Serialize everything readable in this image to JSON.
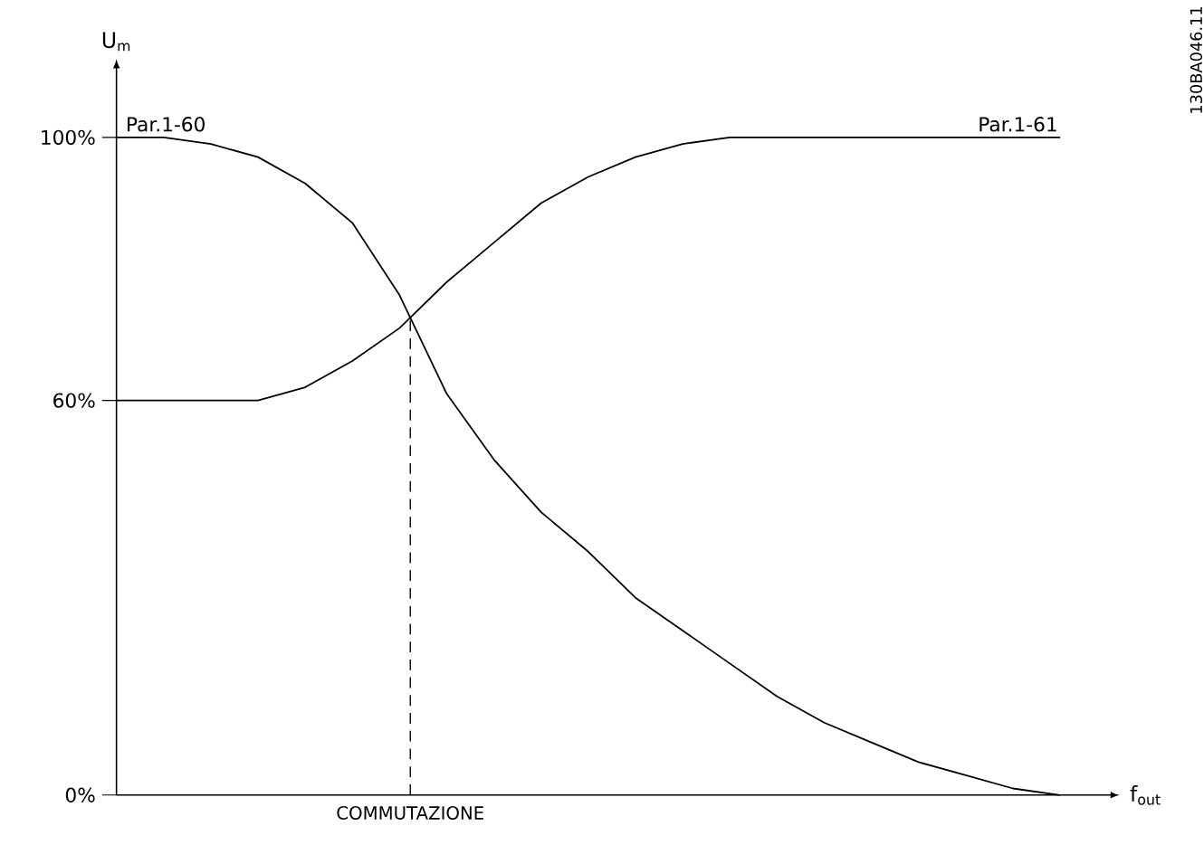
{
  "chart_data": {
    "type": "line",
    "xlabel": "f$_{out}$",
    "ylabel": "U$_{m}$",
    "categories": [
      null,
      null,
      null,
      null,
      null,
      null,
      null,
      null,
      null,
      null,
      null,
      null,
      null,
      null,
      null,
      null,
      null,
      null,
      null,
      null,
      null
    ],
    "series": [
      {
        "name": "Par.1-60",
        "color": "#000000",
        "values": [
          100,
          100,
          99,
          97,
          93,
          87,
          76,
          61,
          51,
          43,
          37,
          30,
          25,
          20,
          15,
          11,
          8,
          5,
          3,
          1,
          0
        ]
      },
      {
        "name": "Par.1-61",
        "color": "#000000",
        "values": [
          60,
          60,
          60,
          60,
          62,
          66,
          71,
          78,
          84,
          90,
          94,
          97,
          99,
          100,
          100,
          100,
          100,
          100,
          100,
          100,
          100
        ]
      }
    ],
    "ylim": [
      0,
      110
    ],
    "yticks": [
      {
        "value": 0,
        "label": "0%"
      },
      {
        "value": 60,
        "label": "60%"
      },
      {
        "value": 100,
        "label": "100%"
      }
    ],
    "tick_labels": "y",
    "annotations": [
      "COMMUTAZIONE",
      "130BA046.11"
    ],
    "grid": false,
    "marker": "none",
    "line_style": "solid"
  }
}
